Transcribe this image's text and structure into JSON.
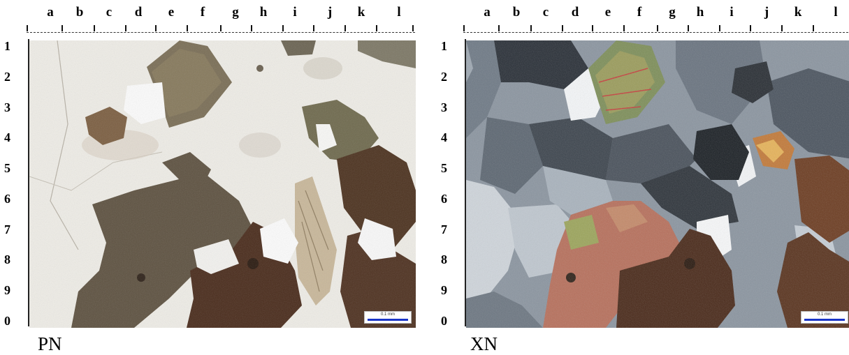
{
  "columns": [
    "a",
    "b",
    "c",
    "d",
    "e",
    "f",
    "g",
    "h",
    "i",
    "j",
    "k",
    "l"
  ],
  "rows": [
    "1",
    "2",
    "3",
    "4",
    "5",
    "6",
    "7",
    "8",
    "9",
    "0"
  ],
  "panels": {
    "pn": {
      "caption": "PN",
      "scale_text": "0.1 mm"
    },
    "xn": {
      "caption": "XN",
      "scale_text": "0.1 mm"
    }
  },
  "colors": {
    "scale_bar": "#1a35c8"
  }
}
